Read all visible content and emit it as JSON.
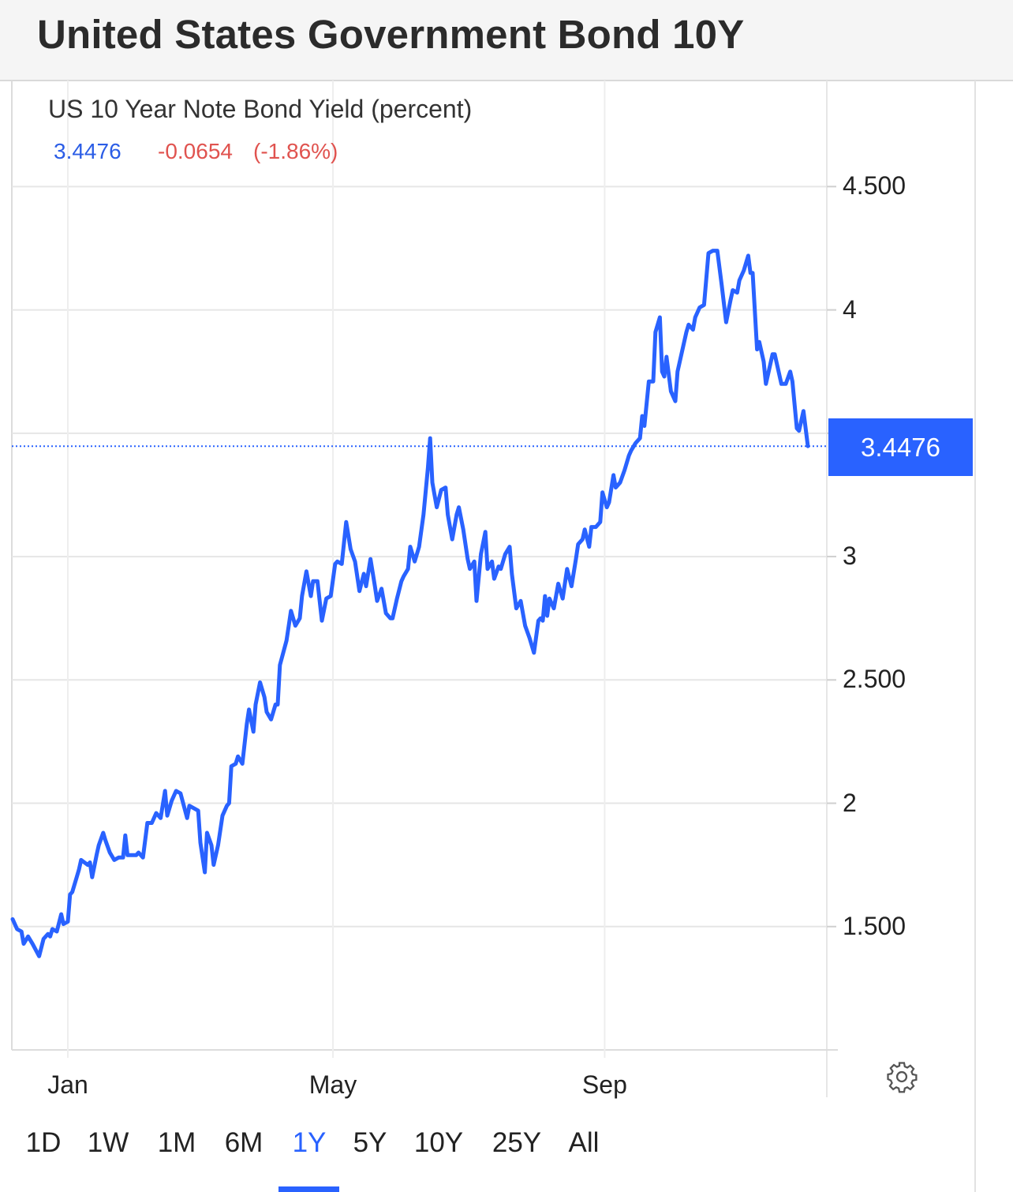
{
  "header": {
    "title": "United States Government Bond 10Y"
  },
  "legend": {
    "series_name": "US 10 Year Note Bond Yield (percent)",
    "last_value": "3.4476",
    "change": "-0.0654",
    "change_pct": "(-1.86%)"
  },
  "current_price_label": "3.4476",
  "colors": {
    "line": "#2962ff",
    "up_text": "#2b5de6",
    "down_text": "#e0534f",
    "grid": "#e6e6e6"
  },
  "ranges": [
    {
      "label": "1D",
      "selected": false
    },
    {
      "label": "1W",
      "selected": false
    },
    {
      "label": "1M",
      "selected": false
    },
    {
      "label": "6M",
      "selected": false
    },
    {
      "label": "1Y",
      "selected": true
    },
    {
      "label": "5Y",
      "selected": false
    },
    {
      "label": "10Y",
      "selected": false
    },
    {
      "label": "25Y",
      "selected": false
    },
    {
      "label": "All",
      "selected": false
    }
  ],
  "settings_icon": "gear-icon",
  "chart_data": {
    "type": "line",
    "title": "US 10 Year Note Bond Yield (percent)",
    "xlabel": "",
    "ylabel": "",
    "ylim": [
      1.0,
      4.93
    ],
    "xlim": [
      "2021-12-07",
      "2022-12-02"
    ],
    "grid": true,
    "y_axis_position": "right",
    "y_ticks": [
      {
        "value": 4.5,
        "label": "4.500"
      },
      {
        "value": 4.0,
        "label": "4"
      },
      {
        "value": 3.5,
        "label": ""
      },
      {
        "value": 3.0,
        "label": "3"
      },
      {
        "value": 2.5,
        "label": "2.500"
      },
      {
        "value": 2.0,
        "label": "2"
      },
      {
        "value": 1.5,
        "label": "1.500"
      }
    ],
    "x_ticks": [
      {
        "date": "2022-01-01",
        "label": "Jan"
      },
      {
        "date": "2022-05-01",
        "label": "May"
      },
      {
        "date": "2022-09-01",
        "label": "Sep"
      }
    ],
    "last_value_line": 3.4476,
    "series": [
      {
        "x": [
          "2021-12-07",
          "2021-12-09",
          "2021-12-11",
          "2021-12-12",
          "2021-12-14",
          "2021-12-16",
          "2021-12-19",
          "2021-12-21",
          "2021-12-23",
          "2021-12-24",
          "2021-12-25",
          "2021-12-27",
          "2021-12-29",
          "2021-12-30",
          "2022-01-01",
          "2022-01-02",
          "2022-01-03",
          "2022-01-05",
          "2022-01-06",
          "2022-01-07",
          "2022-01-10",
          "2022-01-11",
          "2022-01-12",
          "2022-01-14",
          "2022-01-15",
          "2022-01-17",
          "2022-01-18",
          "2022-01-20",
          "2022-01-22",
          "2022-01-24",
          "2022-01-26",
          "2022-01-27",
          "2022-01-28",
          "2022-01-30",
          "2022-02-01",
          "2022-02-02",
          "2022-02-04",
          "2022-02-06",
          "2022-02-08",
          "2022-02-10",
          "2022-02-12",
          "2022-02-14",
          "2022-02-15",
          "2022-02-17",
          "2022-02-19",
          "2022-02-21",
          "2022-02-24",
          "2022-02-25",
          "2022-02-27",
          "2022-03-01",
          "2022-03-02",
          "2022-03-04",
          "2022-03-05",
          "2022-03-07",
          "2022-03-08",
          "2022-03-10",
          "2022-03-12",
          "2022-03-14",
          "2022-03-15",
          "2022-03-16",
          "2022-03-18",
          "2022-03-19",
          "2022-03-21",
          "2022-03-23",
          "2022-03-24",
          "2022-03-26",
          "2022-03-27",
          "2022-03-29",
          "2022-03-31",
          "2022-04-01",
          "2022-04-03",
          "2022-04-05",
          "2022-04-06",
          "2022-04-07",
          "2022-04-10",
          "2022-04-11",
          "2022-04-12",
          "2022-04-14",
          "2022-04-16",
          "2022-04-17",
          "2022-04-19",
          "2022-04-21",
          "2022-04-22",
          "2022-04-24",
          "2022-04-26",
          "2022-04-28",
          "2022-04-30",
          "2022-05-02",
          "2022-05-03",
          "2022-05-05",
          "2022-05-07",
          "2022-05-09",
          "2022-05-11",
          "2022-05-13",
          "2022-05-15",
          "2022-05-16",
          "2022-05-18",
          "2022-05-20",
          "2022-05-21",
          "2022-05-23",
          "2022-05-25",
          "2022-05-27",
          "2022-05-28",
          "2022-05-30",
          "2022-06-01",
          "2022-06-02",
          "2022-06-04",
          "2022-06-05",
          "2022-06-07",
          "2022-06-09",
          "2022-06-11",
          "2022-06-13",
          "2022-06-14",
          "2022-06-15",
          "2022-06-17",
          "2022-06-19",
          "2022-06-21",
          "2022-06-22",
          "2022-06-24",
          "2022-06-26",
          "2022-06-27",
          "2022-06-29",
          "2022-07-01",
          "2022-07-02",
          "2022-07-04",
          "2022-07-05",
          "2022-07-07",
          "2022-07-09",
          "2022-07-10",
          "2022-07-12",
          "2022-07-13",
          "2022-07-15",
          "2022-07-16",
          "2022-07-18",
          "2022-07-20",
          "2022-07-21",
          "2022-07-23",
          "2022-07-25",
          "2022-07-27",
          "2022-07-29",
          "2022-07-31",
          "2022-08-02",
          "2022-08-03",
          "2022-08-04",
          "2022-08-05",
          "2022-08-06",
          "2022-08-07",
          "2022-08-09",
          "2022-08-11",
          "2022-08-13",
          "2022-08-14",
          "2022-08-15",
          "2022-08-17",
          "2022-08-19",
          "2022-08-20",
          "2022-08-22",
          "2022-08-23",
          "2022-08-25",
          "2022-08-26",
          "2022-08-28",
          "2022-08-30",
          "2022-08-31",
          "2022-09-02",
          "2022-09-03",
          "2022-09-05",
          "2022-09-06",
          "2022-09-08",
          "2022-09-10",
          "2022-09-12",
          "2022-09-13",
          "2022-09-15",
          "2022-09-17",
          "2022-09-18",
          "2022-09-19",
          "2022-09-21",
          "2022-09-23",
          "2022-09-24",
          "2022-09-26",
          "2022-09-27",
          "2022-09-28",
          "2022-09-29",
          "2022-10-01",
          "2022-10-03",
          "2022-10-04",
          "2022-10-06",
          "2022-10-08",
          "2022-10-09",
          "2022-10-11",
          "2022-10-12",
          "2022-10-14",
          "2022-10-16",
          "2022-10-18",
          "2022-10-20",
          "2022-10-22",
          "2022-10-24",
          "2022-10-26",
          "2022-10-28",
          "2022-10-29",
          "2022-10-31",
          "2022-11-01",
          "2022-11-03",
          "2022-11-05",
          "2022-11-06",
          "2022-11-07",
          "2022-11-09",
          "2022-11-10",
          "2022-11-12",
          "2022-11-13",
          "2022-11-15",
          "2022-11-16",
          "2022-11-17",
          "2022-11-20",
          "2022-11-22",
          "2022-11-24",
          "2022-11-25",
          "2022-11-27",
          "2022-11-28",
          "2022-11-30",
          "2022-12-02"
        ],
        "y": [
          1.53,
          1.49,
          1.48,
          1.43,
          1.46,
          1.43,
          1.38,
          1.45,
          1.47,
          1.46,
          1.49,
          1.48,
          1.55,
          1.51,
          1.52,
          1.63,
          1.64,
          1.7,
          1.73,
          1.77,
          1.75,
          1.76,
          1.7,
          1.79,
          1.83,
          1.88,
          1.85,
          1.8,
          1.77,
          1.78,
          1.78,
          1.87,
          1.79,
          1.79,
          1.79,
          1.8,
          1.78,
          1.92,
          1.92,
          1.96,
          1.94,
          2.05,
          1.95,
          2.01,
          2.05,
          2.04,
          1.94,
          1.99,
          1.98,
          1.97,
          1.84,
          1.72,
          1.88,
          1.83,
          1.75,
          1.83,
          1.95,
          1.99,
          2.0,
          2.15,
          2.16,
          2.19,
          2.16,
          2.32,
          2.38,
          2.29,
          2.4,
          2.49,
          2.43,
          2.37,
          2.34,
          2.4,
          2.4,
          2.56,
          2.66,
          2.72,
          2.78,
          2.72,
          2.75,
          2.84,
          2.94,
          2.84,
          2.9,
          2.9,
          2.74,
          2.83,
          2.84,
          2.97,
          2.98,
          2.97,
          3.14,
          3.03,
          2.98,
          2.86,
          2.93,
          2.88,
          2.99,
          2.88,
          2.82,
          2.87,
          2.77,
          2.75,
          2.75,
          2.83,
          2.9,
          2.92,
          2.95,
          3.04,
          2.98,
          3.04,
          3.17,
          3.36,
          3.48,
          3.3,
          3.2,
          3.27,
          3.28,
          3.17,
          3.07,
          3.17,
          3.2,
          3.11,
          2.99,
          2.95,
          2.98,
          2.82,
          3.01,
          3.1,
          2.95,
          2.98,
          2.91,
          2.96,
          2.95,
          3.01,
          3.04,
          2.93,
          2.79,
          2.82,
          2.72,
          2.67,
          2.61,
          2.74,
          2.75,
          2.74,
          2.84,
          2.76,
          2.83,
          2.79,
          2.89,
          2.83,
          2.89,
          2.95,
          2.88,
          2.99,
          3.05,
          3.07,
          3.11,
          3.04,
          3.12,
          3.12,
          3.14,
          3.26,
          3.2,
          3.22,
          3.33,
          3.28,
          3.3,
          3.35,
          3.41,
          3.43,
          3.46,
          3.48,
          3.57,
          3.53,
          3.71,
          3.71,
          3.91,
          3.97,
          3.75,
          3.73,
          3.81,
          3.67,
          3.63,
          3.75,
          3.83,
          3.91,
          3.94,
          3.92,
          3.97,
          4.01,
          4.02,
          4.23,
          4.24,
          4.24,
          4.1,
          3.95,
          4.04,
          4.08,
          4.07,
          4.12,
          4.16,
          4.22,
          4.15,
          4.15,
          3.84,
          3.87,
          3.79,
          3.7,
          3.78,
          3.82,
          3.82,
          3.7,
          3.7,
          3.75,
          3.71,
          3.52,
          3.51,
          3.59,
          3.4476
        ]
      }
    ]
  }
}
